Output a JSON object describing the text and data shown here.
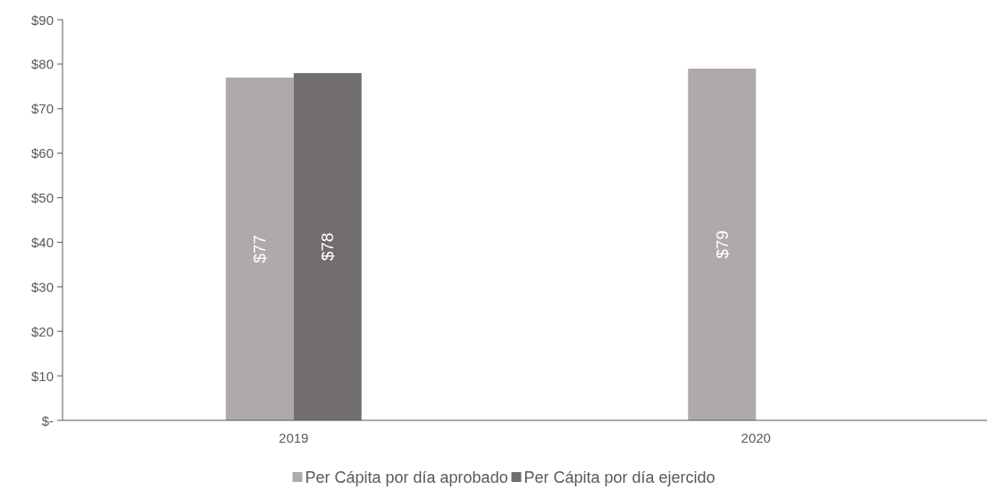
{
  "chart_data": {
    "type": "bar",
    "categories": [
      "2019",
      "2020"
    ],
    "series": [
      {
        "name": "Per Cápita  por día aprobado",
        "color": "#aeaaa9",
        "values": [
          77,
          79
        ],
        "value_labels": [
          "$77",
          "$79"
        ]
      },
      {
        "name": "Per Cápita  por día ejercido",
        "color": "#726e6d",
        "values": [
          78,
          null
        ],
        "value_labels": [
          "$78",
          null
        ]
      }
    ],
    "ylim": [
      0,
      90
    ],
    "yticks": [
      {
        "value": 0,
        "label": "$-"
      },
      {
        "value": 10,
        "label": "$10"
      },
      {
        "value": 20,
        "label": "$20"
      },
      {
        "value": 30,
        "label": "$30"
      },
      {
        "value": 40,
        "label": "$40"
      },
      {
        "value": 50,
        "label": "$50"
      },
      {
        "value": 60,
        "label": "$60"
      },
      {
        "value": 70,
        "label": "$70"
      },
      {
        "value": 80,
        "label": "$80"
      },
      {
        "value": 90,
        "label": "$90"
      }
    ],
    "grid": false,
    "legend": "bottom"
  }
}
